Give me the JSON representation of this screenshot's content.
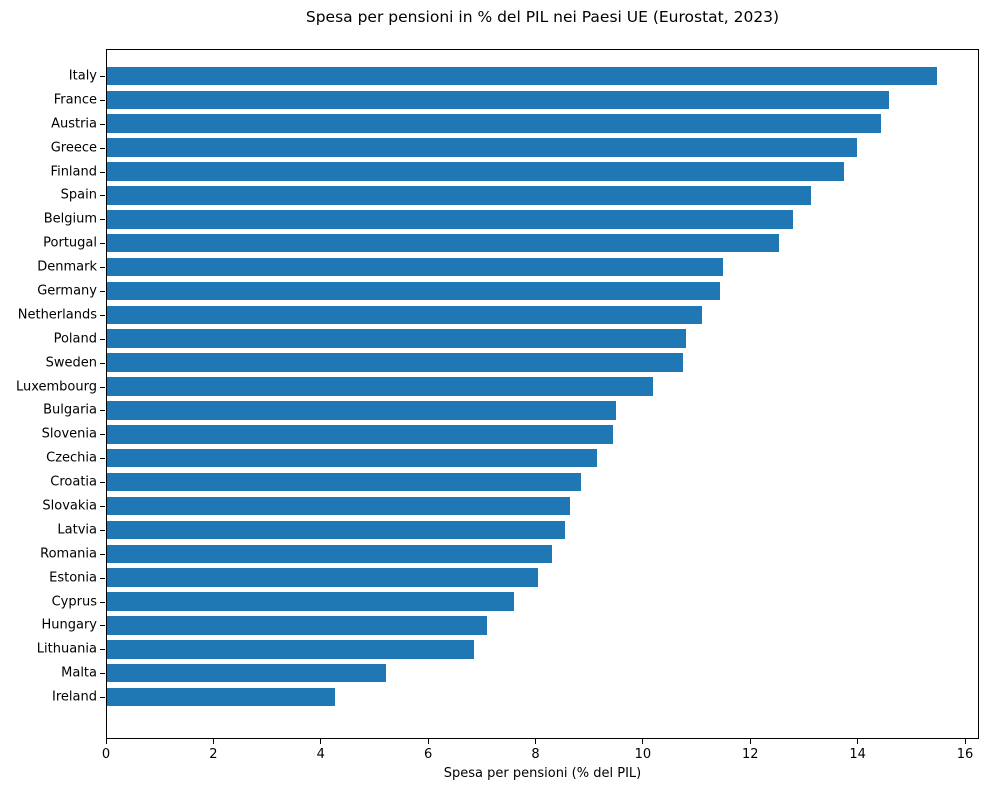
{
  "figure": {
    "title": "Spesa per pensioni in % del PIL nei Paesi UE (Eurostat, 2023)"
  },
  "colors": {
    "bar": "#1f77b4",
    "text": "#000000",
    "spine": "#000000",
    "background": "#ffffff"
  },
  "chart_data": {
    "type": "bar",
    "orientation": "horizontal",
    "title": "Spesa per pensioni in % del PIL nei Paesi UE (Eurostat, 2023)",
    "xlabel": "Spesa per pensioni (% del PIL)",
    "ylabel": "",
    "categories": [
      "Italy",
      "France",
      "Austria",
      "Greece",
      "Finland",
      "Spain",
      "Belgium",
      "Portugal",
      "Denmark",
      "Germany",
      "Netherlands",
      "Poland",
      "Sweden",
      "Luxembourg",
      "Bulgaria",
      "Slovenia",
      "Czechia",
      "Croatia",
      "Slovakia",
      "Latvia",
      "Romania",
      "Estonia",
      "Cyprus",
      "Hungary",
      "Lithuania",
      "Malta",
      "Ireland"
    ],
    "values": [
      15.5,
      14.6,
      14.45,
      14.0,
      13.75,
      13.15,
      12.8,
      12.55,
      11.5,
      11.45,
      11.1,
      10.8,
      10.75,
      10.2,
      9.5,
      9.45,
      9.15,
      8.85,
      8.65,
      8.55,
      8.3,
      8.05,
      7.6,
      7.1,
      6.85,
      5.2,
      4.25
    ],
    "xlim": [
      0,
      16.26
    ],
    "xticks": [
      0,
      2,
      4,
      6,
      8,
      10,
      12,
      14,
      16
    ],
    "grid": false,
    "legend": "none",
    "bar_color": "#1f77b4"
  }
}
